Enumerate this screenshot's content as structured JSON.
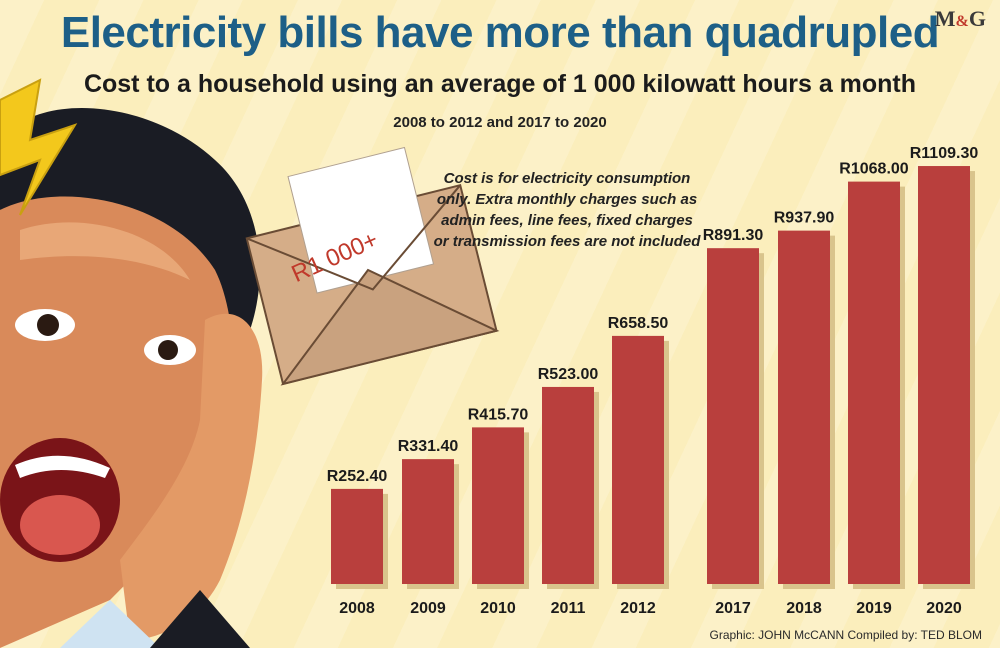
{
  "header": {
    "title": "Electricity bills have more than quadrupled",
    "subtitle": "Cost to a household using an average of 1 000 kilowatt hours a month",
    "range": "2008 to 2012 and 2017 to 2020",
    "logo_main": "M",
    "logo_amp": "&",
    "logo_end": "G"
  },
  "note": {
    "text": "Cost is for electricity consumption only. Extra monthly charges such as admin fees, line fees, fixed charges or transmission fees are not included"
  },
  "envelope_label": "R1 000+",
  "credits": "Graphic: JOHN McCANN  Compiled by: TED BLOM",
  "colors": {
    "bar": "#b93f3d",
    "bar_shadow": "#d9c48c",
    "title": "#1d5f87",
    "background": "#fbeebc"
  },
  "chart_data": {
    "type": "bar",
    "title": "Electricity bills have more than quadrupled",
    "categories": [
      "2008",
      "2009",
      "2010",
      "2011",
      "2012",
      "2017",
      "2018",
      "2019",
      "2020"
    ],
    "values": [
      252.4,
      331.4,
      415.7,
      523.0,
      658.5,
      891.3,
      937.9,
      1068.0,
      1109.3
    ],
    "value_labels": [
      "R252.40",
      "R331.40",
      "R415.70",
      "R523.00",
      "R658.50",
      "R891.30",
      "R937.90",
      "R1068.00",
      "R1109.30"
    ],
    "xlabel": "",
    "ylabel": "",
    "ylim": [
      0,
      1200
    ],
    "grid": false,
    "legend": "none"
  }
}
